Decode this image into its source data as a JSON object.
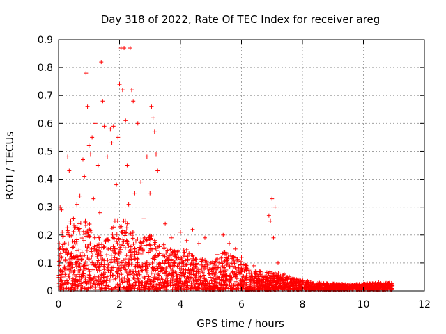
{
  "chart_data": {
    "type": "scatter",
    "title": "Day 318 of 2022, Rate Of TEC Index for receiver areg",
    "xlabel": "GPS time / hours",
    "ylabel": "ROTI / TECUs",
    "xlim": [
      0,
      12
    ],
    "ylim": [
      0,
      0.9
    ],
    "xticks": [
      "0",
      "2",
      "4",
      "6",
      "8",
      "10",
      "12"
    ],
    "yticks": [
      "0",
      "0.1",
      "0.2",
      "0.3",
      "0.4",
      "0.5",
      "0.6",
      "0.7",
      "0.8",
      "0.9"
    ],
    "grid": true,
    "marker": "plus",
    "color": "#ff0000",
    "points": [
      [
        0.05,
        0.3
      ],
      [
        0.1,
        0.29
      ],
      [
        0.12,
        0.21
      ],
      [
        0.15,
        0.05
      ],
      [
        0.2,
        0.03
      ],
      [
        0.3,
        0.48
      ],
      [
        0.35,
        0.43
      ],
      [
        0.4,
        0.25
      ],
      [
        0.5,
        0.12
      ],
      [
        0.6,
        0.31
      ],
      [
        0.7,
        0.34
      ],
      [
        0.8,
        0.47
      ],
      [
        0.85,
        0.41
      ],
      [
        0.9,
        0.78
      ],
      [
        0.95,
        0.66
      ],
      [
        1.0,
        0.52
      ],
      [
        1.05,
        0.49
      ],
      [
        1.1,
        0.55
      ],
      [
        1.15,
        0.33
      ],
      [
        1.2,
        0.6
      ],
      [
        1.3,
        0.45
      ],
      [
        1.35,
        0.28
      ],
      [
        1.4,
        0.82
      ],
      [
        1.45,
        0.68
      ],
      [
        1.5,
        0.59
      ],
      [
        1.6,
        0.48
      ],
      [
        1.7,
        0.58
      ],
      [
        1.75,
        0.53
      ],
      [
        1.8,
        0.59
      ],
      [
        1.85,
        0.25
      ],
      [
        1.9,
        0.38
      ],
      [
        1.95,
        0.55
      ],
      [
        2.0,
        0.74
      ],
      [
        2.05,
        0.87
      ],
      [
        2.1,
        0.72
      ],
      [
        2.15,
        0.87
      ],
      [
        2.2,
        0.61
      ],
      [
        2.25,
        0.45
      ],
      [
        2.3,
        0.31
      ],
      [
        2.35,
        0.87
      ],
      [
        2.4,
        0.72
      ],
      [
        2.45,
        0.68
      ],
      [
        2.5,
        0.35
      ],
      [
        2.6,
        0.6
      ],
      [
        2.7,
        0.39
      ],
      [
        2.8,
        0.26
      ],
      [
        2.9,
        0.48
      ],
      [
        3.0,
        0.35
      ],
      [
        3.05,
        0.66
      ],
      [
        3.1,
        0.62
      ],
      [
        3.15,
        0.57
      ],
      [
        3.2,
        0.49
      ],
      [
        3.25,
        0.43
      ],
      [
        3.3,
        0.16
      ],
      [
        3.5,
        0.24
      ],
      [
        3.7,
        0.19
      ],
      [
        3.9,
        0.14
      ],
      [
        4.0,
        0.21
      ],
      [
        4.2,
        0.18
      ],
      [
        4.4,
        0.22
      ],
      [
        4.6,
        0.17
      ],
      [
        4.8,
        0.19
      ],
      [
        5.0,
        0.1
      ],
      [
        5.2,
        0.13
      ],
      [
        5.4,
        0.2
      ],
      [
        5.6,
        0.17
      ],
      [
        5.8,
        0.15
      ],
      [
        6.0,
        0.12
      ],
      [
        6.2,
        0.08
      ],
      [
        6.4,
        0.09
      ],
      [
        6.6,
        0.07
      ],
      [
        6.8,
        0.05
      ],
      [
        6.9,
        0.27
      ],
      [
        6.95,
        0.25
      ],
      [
        7.0,
        0.33
      ],
      [
        7.05,
        0.19
      ],
      [
        7.1,
        0.3
      ],
      [
        7.2,
        0.1
      ],
      [
        7.4,
        0.06
      ],
      [
        7.6,
        0.04
      ],
      [
        7.8,
        0.03
      ],
      [
        8.0,
        0.03
      ],
      [
        8.3,
        0.02
      ],
      [
        8.6,
        0.02
      ],
      [
        9.0,
        0.02
      ],
      [
        9.4,
        0.02
      ],
      [
        9.8,
        0.02
      ],
      [
        10.2,
        0.02
      ],
      [
        10.5,
        0.03
      ],
      [
        10.8,
        0.02
      ],
      [
        10.95,
        0.02
      ]
    ],
    "density_envelope": [
      [
        0.0,
        0.16
      ],
      [
        0.25,
        0.22
      ],
      [
        0.5,
        0.26
      ],
      [
        0.75,
        0.24
      ],
      [
        1.0,
        0.26
      ],
      [
        1.25,
        0.2
      ],
      [
        1.5,
        0.17
      ],
      [
        1.75,
        0.22
      ],
      [
        2.0,
        0.28
      ],
      [
        2.25,
        0.24
      ],
      [
        2.5,
        0.2
      ],
      [
        2.75,
        0.18
      ],
      [
        3.0,
        0.2
      ],
      [
        3.25,
        0.17
      ],
      [
        3.5,
        0.16
      ],
      [
        3.75,
        0.14
      ],
      [
        4.0,
        0.14
      ],
      [
        4.25,
        0.15
      ],
      [
        4.5,
        0.13
      ],
      [
        4.75,
        0.11
      ],
      [
        5.0,
        0.1
      ],
      [
        5.25,
        0.12
      ],
      [
        5.5,
        0.14
      ],
      [
        5.75,
        0.12
      ],
      [
        6.0,
        0.1
      ],
      [
        6.25,
        0.08
      ],
      [
        6.5,
        0.07
      ],
      [
        6.75,
        0.06
      ],
      [
        7.0,
        0.07
      ],
      [
        7.25,
        0.06
      ],
      [
        7.5,
        0.05
      ],
      [
        7.75,
        0.04
      ],
      [
        8.0,
        0.035
      ],
      [
        8.5,
        0.025
      ],
      [
        9.0,
        0.022
      ],
      [
        9.5,
        0.02
      ],
      [
        10.0,
        0.022
      ],
      [
        10.5,
        0.025
      ],
      [
        10.95,
        0.025
      ]
    ]
  }
}
